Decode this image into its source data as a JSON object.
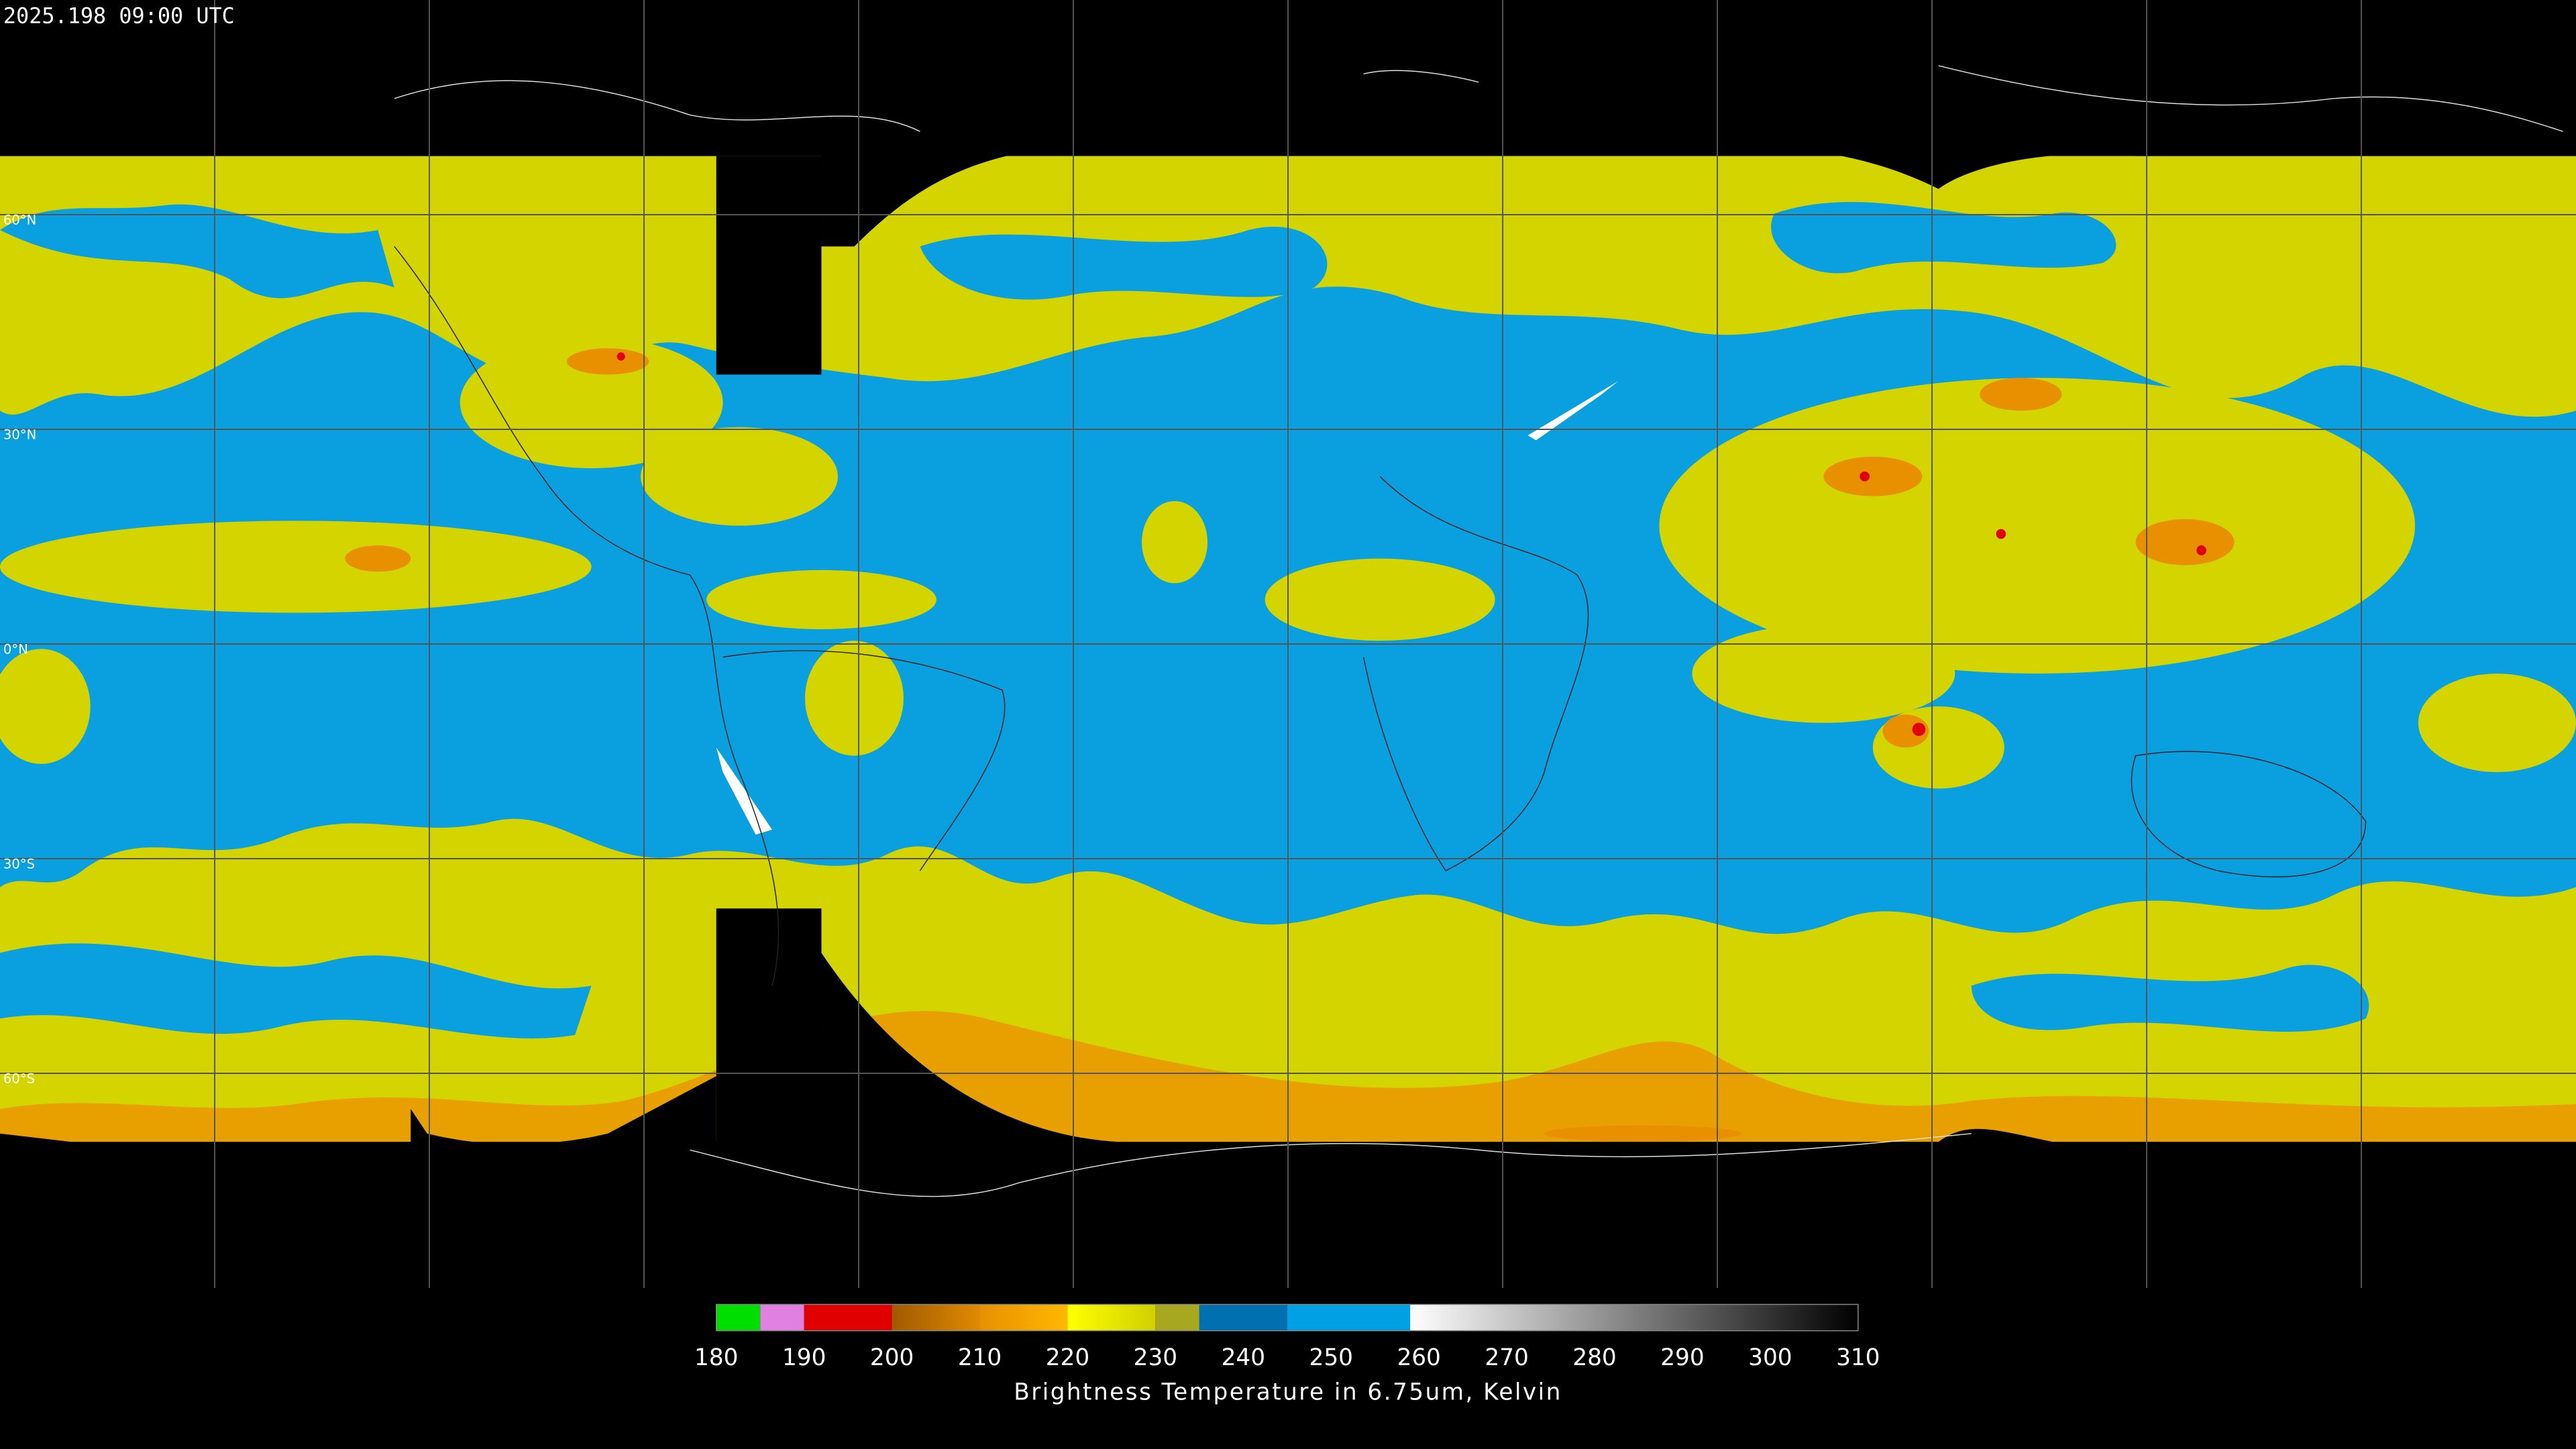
{
  "header": {
    "title": "2025.198 09:00 UTC"
  },
  "map": {
    "latitude_labels": [
      "60°N",
      "30°N",
      "0°N",
      "30°S",
      "60°S"
    ]
  },
  "colorbar": {
    "range": [
      180,
      310
    ],
    "ticks": [
      180,
      190,
      200,
      210,
      220,
      230,
      240,
      250,
      260,
      270,
      280,
      290,
      300,
      310
    ],
    "label": "Brightness Temperature in 6.75um, Kelvin",
    "segments": [
      {
        "from": 180,
        "to": 185,
        "colors": [
          "#00dd00",
          "#00dd00"
        ]
      },
      {
        "from": 185,
        "to": 190,
        "colors": [
          "#e080e0",
          "#e080e0"
        ]
      },
      {
        "from": 190,
        "to": 200,
        "colors": [
          "#e00000",
          "#e00000"
        ]
      },
      {
        "from": 200,
        "to": 210,
        "colors": [
          "#a05a00",
          "#e08a00"
        ]
      },
      {
        "from": 210,
        "to": 220,
        "colors": [
          "#e89000",
          "#ffb800"
        ]
      },
      {
        "from": 220,
        "to": 230,
        "colors": [
          "#ffff00",
          "#d0d000"
        ]
      },
      {
        "from": 230,
        "to": 235,
        "colors": [
          "#a8a820",
          "#a8a820"
        ]
      },
      {
        "from": 235,
        "to": 245,
        "colors": [
          "#0070b0",
          "#0070b0"
        ]
      },
      {
        "from": 245,
        "to": 259,
        "colors": [
          "#00a0e4",
          "#00a0e4"
        ]
      },
      {
        "from": 259,
        "to": 310,
        "colors": [
          "#ffffff",
          "#000000"
        ]
      }
    ]
  }
}
